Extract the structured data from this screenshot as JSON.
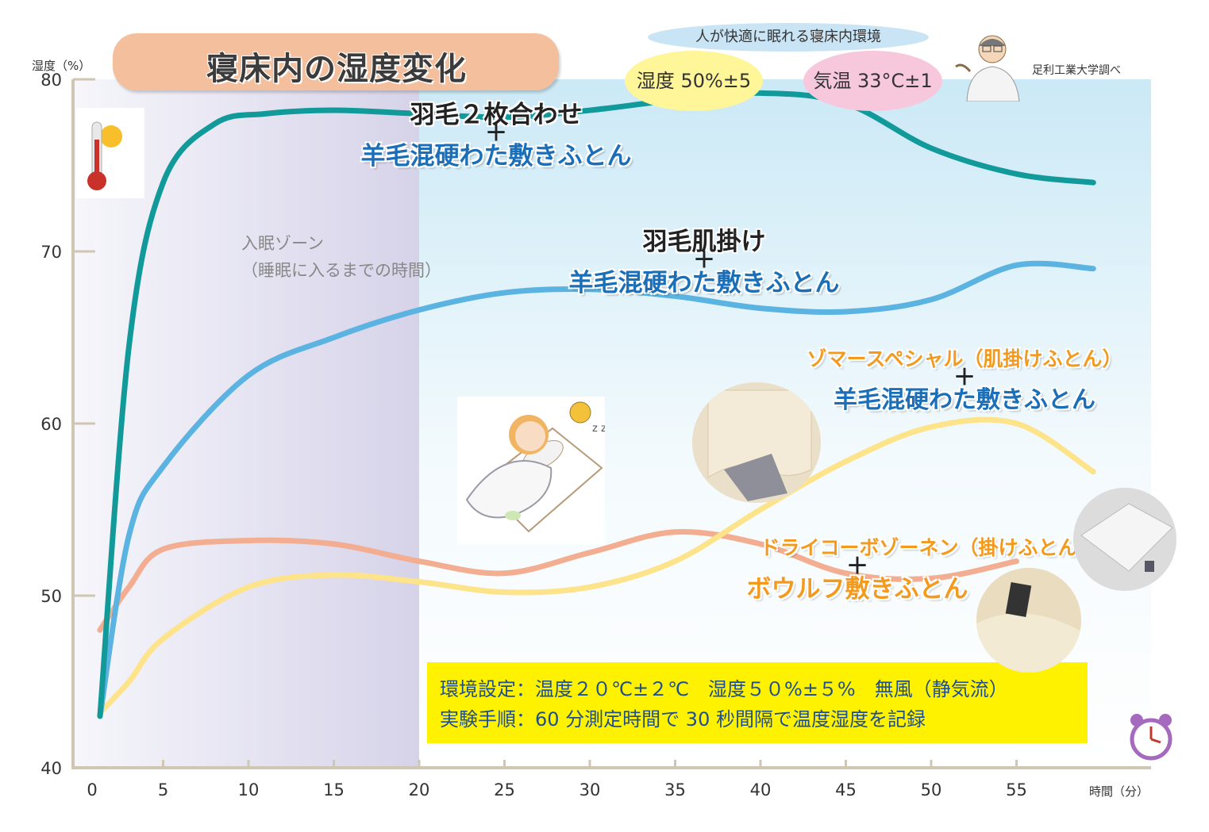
{
  "chart_data": {
    "type": "line",
    "title": "寝床内の湿度変化",
    "ylabel": "湿度（%）",
    "xlabel": "時間（分）",
    "xlim": [
      0,
      62
    ],
    "ylim": [
      40,
      80
    ],
    "xticks": [
      "0",
      "5",
      "10",
      "15",
      "20",
      "25",
      "30",
      "35",
      "40",
      "45",
      "50",
      "55"
    ],
    "yticks": [
      "40",
      "50",
      "60",
      "70",
      "80"
    ],
    "zone": {
      "label_line1": "入眠ゾーン",
      "label_line2": "（睡眠に入るまでの時間）",
      "from": 0,
      "to": 20
    },
    "series": [
      {
        "line1": "羽毛２枚合わせ",
        "plus": "＋",
        "line2": "羊毛混硬わた敷きふとん",
        "color": "#129a9a",
        "x": [
          1.3,
          3,
          5,
          8,
          11,
          15,
          20,
          25,
          30,
          35,
          40,
          45,
          50,
          55,
          59.5
        ],
        "y": [
          43.0,
          64.5,
          74.0,
          77.4,
          78.0,
          78.2,
          78.0,
          77.8,
          78.2,
          78.8,
          79.2,
          78.6,
          76.0,
          74.5,
          74.0
        ]
      },
      {
        "line1": "羽毛肌掛け",
        "plus": "＋",
        "line2": "羊毛混硬わた敷きふとん",
        "color": "#5ab3e0",
        "x": [
          1.3,
          3,
          5,
          10,
          15,
          20,
          25,
          30,
          35,
          40,
          45,
          50,
          55,
          59.5
        ],
        "y": [
          43.0,
          53.5,
          57.5,
          62.8,
          65.0,
          66.6,
          67.6,
          67.8,
          67.4,
          66.7,
          66.5,
          67.2,
          69.2,
          69.0
        ]
      },
      {
        "line1": "ゾマースペシャル（肌掛けふとん）",
        "plus": "＋",
        "line2": "羊毛混硬わた敷きふとん",
        "color": "#fde38a",
        "x": [
          1.3,
          3,
          5,
          10,
          15,
          20,
          25,
          30,
          35,
          40,
          45,
          50,
          55,
          59.5
        ],
        "y": [
          43.2,
          45.0,
          47.5,
          50.5,
          51.2,
          50.8,
          50.2,
          50.5,
          52.0,
          55.0,
          57.8,
          59.8,
          60.0,
          57.2
        ]
      },
      {
        "line1": "ドライコーボゾーネン（掛けふとん）",
        "plus": "＋",
        "line2": "ボウルフ敷きふとん",
        "color": "#f3ae92",
        "x": [
          1.3,
          3,
          5,
          10,
          15,
          20,
          25,
          30,
          35,
          40,
          45,
          50,
          55
        ],
        "y": [
          48.0,
          50.5,
          52.7,
          53.2,
          53.0,
          52.0,
          51.3,
          52.5,
          53.7,
          53.0,
          51.3,
          51.0,
          52.0
        ]
      }
    ]
  },
  "header": {
    "condition_title": "人が快適に眠れる寝床内環境",
    "humidity": "湿度 50%±5",
    "temperature": "気温 33°C±1",
    "researcher": "足利工業大学調べ"
  },
  "environment": {
    "line1": "環境設定：温度２０℃±２℃　湿度５０%±５%　無風（静気流）",
    "line2": "実験手順：60 分測定時間で 30 秒間隔で温度湿度を記録"
  },
  "icons": [
    "thermometer-sun-icon",
    "alarm-clock-icon",
    "doctor-illustration",
    "sleeping-girl-illustration"
  ]
}
